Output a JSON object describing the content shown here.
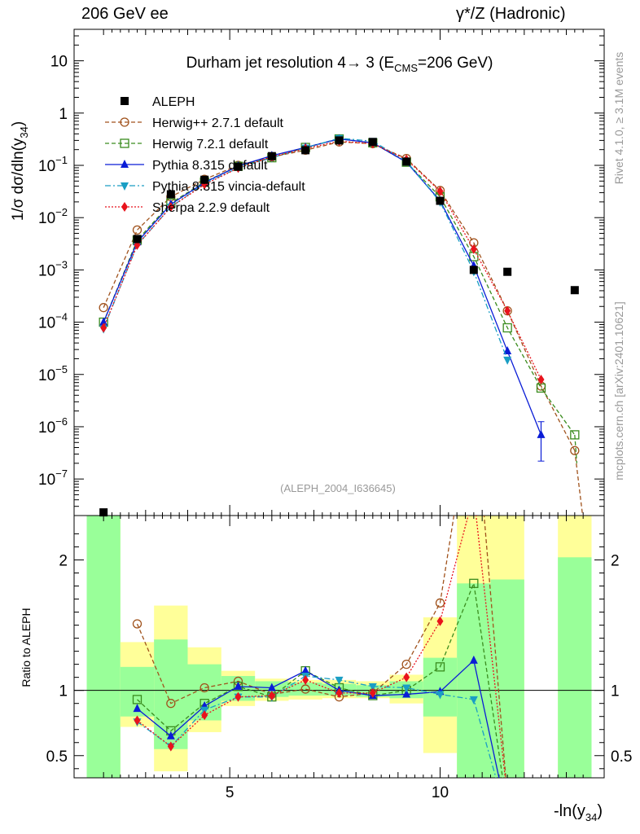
{
  "header": {
    "left": "206 GeV ee",
    "right": "γ*/Z (Hadronic)"
  },
  "side_labels": {
    "rivet": "Rivet 4.1.0, ≥ 3.1M events",
    "mcplots": "mcplots.cern.ch [arXiv:2401.10621]"
  },
  "chart_data": [
    {
      "type": "line",
      "title": "Durham jet resolution 4→ 3 (E_CMS=206 GeV)",
      "title_parts": {
        "main": "Durham jet resolution 4",
        "arrow": "→",
        "mid": " 3 (E",
        "sub": "CMS",
        "end": "=206 GeV)"
      },
      "ylabel_parts": {
        "pre": "1/σ  dσ/dln(y",
        "sub": "34",
        "post": ")"
      },
      "xlabel_parts": {
        "pre": "-ln(y",
        "sub": "34",
        "post": ")"
      },
      "analysis_tag": "(ALEPH_2004_I636645)",
      "yscale": "log",
      "xlim": [
        1.3,
        13.9
      ],
      "ylim": [
        2e-08,
        40
      ],
      "ytick_labels": [
        {
          "v": 10,
          "base": "10",
          "exp": ""
        },
        {
          "v": 1,
          "base": "1",
          "exp": ""
        },
        {
          "v": 0.1,
          "base": "10",
          "exp": "−1"
        },
        {
          "v": 0.01,
          "base": "10",
          "exp": "−2"
        },
        {
          "v": 0.001,
          "base": "10",
          "exp": "−3"
        },
        {
          "v": 0.0001,
          "base": "10",
          "exp": "−4"
        },
        {
          "v": 1e-05,
          "base": "10",
          "exp": "−5"
        },
        {
          "v": 1e-06,
          "base": "10",
          "exp": "−6"
        },
        {
          "v": 1e-07,
          "base": "10",
          "exp": "−7"
        }
      ],
      "bins": [
        {
          "lo": 1.6,
          "hi": 2.4
        },
        {
          "lo": 2.4,
          "hi": 3.2
        },
        {
          "lo": 3.2,
          "hi": 4.0
        },
        {
          "lo": 4.0,
          "hi": 4.8
        },
        {
          "lo": 4.8,
          "hi": 5.6
        },
        {
          "lo": 5.6,
          "hi": 6.4
        },
        {
          "lo": 6.4,
          "hi": 7.2
        },
        {
          "lo": 7.2,
          "hi": 8.0
        },
        {
          "lo": 8.0,
          "hi": 8.8
        },
        {
          "lo": 8.8,
          "hi": 9.6
        },
        {
          "lo": 9.6,
          "hi": 10.4
        },
        {
          "lo": 10.4,
          "hi": 11.2
        },
        {
          "lo": 11.2,
          "hi": 12.0
        },
        {
          "lo": 12.0,
          "hi": 12.8
        },
        {
          "lo": 12.8,
          "hi": 13.6
        }
      ],
      "x": [
        2.0,
        2.8,
        3.6,
        4.4,
        5.2,
        6.0,
        6.8,
        7.6,
        8.4,
        9.2,
        10.0,
        10.8,
        11.6,
        12.4,
        13.2
      ],
      "data": {
        "name": "ALEPH",
        "color": "#000000",
        "values": [
          2.3e-08,
          0.0039,
          0.028,
          0.053,
          0.094,
          0.15,
          0.195,
          0.3,
          0.28,
          0.118,
          0.021,
          0.001,
          0.00092,
          null,
          0.00041
        ]
      },
      "series": [
        {
          "name": "Herwig++ 2.7.1 default",
          "color": "#a0521c",
          "marker": "open-circle",
          "dash": "5,3",
          "values": [
            0.00019,
            0.0058,
            0.025,
            0.054,
            0.1,
            0.145,
            0.195,
            0.28,
            0.26,
            0.135,
            0.033,
            0.0033,
            0.000165,
            6e-06,
            3.5e-07
          ]
        },
        {
          "name": "Herwig 7.2.1 default",
          "color": "#3a8c1e",
          "marker": "open-square",
          "dash": "5,3",
          "values": [
            0.0001,
            0.0037,
            0.019,
            0.048,
            0.096,
            0.14,
            0.22,
            0.32,
            0.27,
            0.115,
            0.025,
            0.0018,
            7.8e-05,
            5.5e-06,
            7e-07
          ]
        },
        {
          "name": "Pythia 8.315 default",
          "color": "#0a1cd6",
          "marker": "triangle-up",
          "dash": "",
          "values": [
            0.0001,
            0.0034,
            0.018,
            0.047,
            0.097,
            0.153,
            0.22,
            0.32,
            0.27,
            0.115,
            0.021,
            0.0012,
            2.8e-05,
            7e-07,
            null
          ]
        },
        {
          "name": "Pythia 8.315 vincia-default",
          "color": "#1a9ec4",
          "marker": "triangle-down",
          "dash": "7,3,2,3",
          "values": [
            7.5e-05,
            0.003,
            0.016,
            0.045,
            0.089,
            0.14,
            0.215,
            0.33,
            0.29,
            0.12,
            0.02,
            0.00093,
            1.9e-05,
            null,
            null
          ]
        },
        {
          "name": "Sherpa 2.2.9 default",
          "color": "#e8131c",
          "marker": "diamond",
          "dash": "2,2",
          "values": [
            7.8e-05,
            0.003,
            0.016,
            0.043,
            0.089,
            0.145,
            0.21,
            0.29,
            0.26,
            0.13,
            0.032,
            0.0025,
            0.000165,
            8e-06,
            null
          ]
        }
      ]
    },
    {
      "type": "line",
      "title": "",
      "ylabel": "Ratio to ALEPH",
      "ylim": [
        0.33,
        2.34
      ],
      "ytick_labels": [
        {
          "v": 0.5,
          "label": "0.5"
        },
        {
          "v": 1,
          "label": "1"
        },
        {
          "v": 2,
          "label": "2"
        }
      ],
      "xtick_labels": [
        {
          "v": 5,
          "label": "5"
        },
        {
          "v": 10,
          "label": "10"
        }
      ],
      "band_yellow": [
        [
          0.2,
          10.0
        ],
        [
          0.72,
          1.37
        ],
        [
          0.38,
          1.65
        ],
        [
          0.68,
          1.33
        ],
        [
          0.88,
          1.15
        ],
        [
          0.92,
          1.09
        ],
        [
          0.93,
          1.08
        ],
        [
          0.94,
          1.08
        ],
        [
          0.94,
          1.07
        ],
        [
          0.9,
          1.12
        ],
        [
          0.52,
          1.56
        ],
        [
          0.2,
          10.0
        ],
        [
          0.2,
          10.0
        ],
        null,
        [
          0.2,
          10.0
        ]
      ],
      "band_green": [
        [
          0.2,
          10.0
        ],
        [
          0.8,
          1.18
        ],
        [
          0.55,
          1.39
        ],
        [
          0.77,
          1.2
        ],
        [
          0.92,
          1.11
        ],
        [
          0.95,
          1.07
        ],
        [
          0.96,
          1.06
        ],
        [
          0.96,
          1.05
        ],
        [
          0.95,
          1.04
        ],
        [
          0.94,
          1.07
        ],
        [
          0.8,
          1.25
        ],
        [
          0.2,
          1.82
        ],
        [
          0.2,
          1.85
        ],
        null,
        [
          0.2,
          2.02
        ]
      ],
      "series": [
        {
          "name": "Herwig++ 2.7.1 default",
          "values": [
            null,
            1.51,
            0.9,
            1.02,
            1.07,
            0.97,
            1.01,
            0.95,
            0.98,
            1.2,
            1.67,
            3.3,
            0.18,
            null,
            null
          ]
        },
        {
          "name": "Herwig 7.2.1 default",
          "values": [
            null,
            0.93,
            0.69,
            0.9,
            1.03,
            0.95,
            1.15,
            1.02,
            0.96,
            1.0,
            1.18,
            1.82,
            0.085,
            null,
            null
          ]
        },
        {
          "name": "Pythia 8.315 default",
          "values": [
            null,
            0.86,
            0.65,
            0.88,
            1.03,
            1.02,
            1.15,
            1.0,
            0.96,
            0.97,
            0.99,
            1.23,
            0.03,
            null,
            null
          ]
        },
        {
          "name": "Pythia 8.315 vincia-default",
          "values": [
            null,
            0.76,
            0.57,
            0.85,
            0.95,
            0.95,
            1.11,
            1.08,
            1.03,
            1.02,
            0.97,
            0.93,
            0.02,
            null,
            null
          ]
        },
        {
          "name": "Sherpa 2.2.9 default",
          "values": [
            null,
            0.77,
            0.57,
            0.81,
            0.95,
            0.96,
            1.08,
            0.98,
            0.98,
            1.1,
            1.53,
            2.5,
            0.18,
            null,
            null
          ]
        }
      ]
    }
  ]
}
